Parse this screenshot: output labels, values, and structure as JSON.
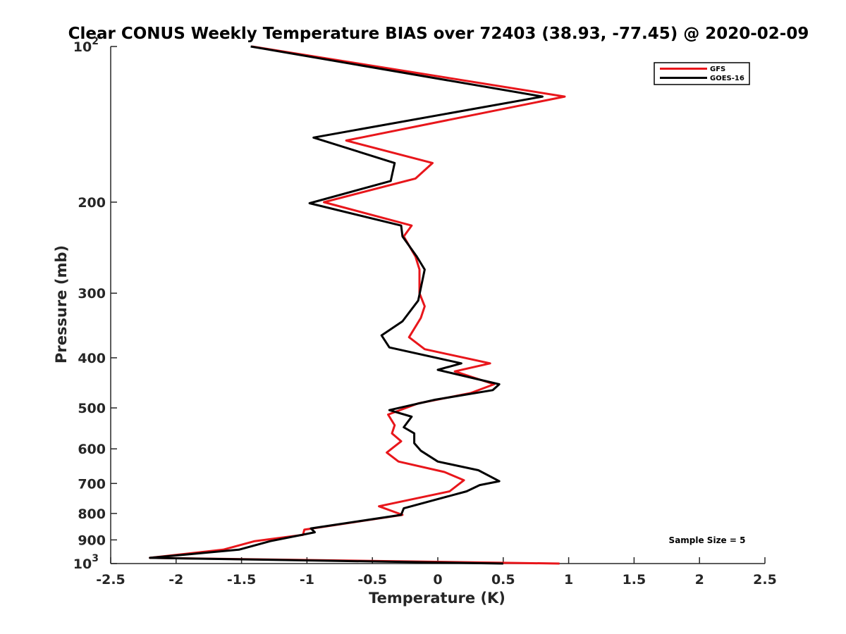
{
  "chart_data": {
    "type": "line",
    "title": "Clear CONUS Weekly Temperature BIAS over 72403 (38.93, -77.45) @ 2020-02-09",
    "xlabel": "Temperature (K)",
    "ylabel": "Pressure (mb)",
    "xlim": [
      -2.5,
      2.5
    ],
    "ylim": [
      100,
      1000
    ],
    "y_scale": "log",
    "y_reversed": true,
    "grid": false,
    "legend_position": "top-right",
    "x_ticks": [
      "-2.5",
      "-2",
      "-1.5",
      "-1",
      "-0.5",
      "0",
      "0.5",
      "1",
      "1.5",
      "2",
      "2.5"
    ],
    "x_tick_values": [
      -2.5,
      -2,
      -1.5,
      -1,
      -0.5,
      0,
      0.5,
      1,
      1.5,
      2,
      2.5
    ],
    "y_ticks": [
      {
        "value": 100,
        "base": "10",
        "exp": "2"
      },
      {
        "value": 200,
        "base": "200",
        "exp": ""
      },
      {
        "value": 300,
        "base": "300",
        "exp": ""
      },
      {
        "value": 400,
        "base": "400",
        "exp": ""
      },
      {
        "value": 500,
        "base": "500",
        "exp": ""
      },
      {
        "value": 600,
        "base": "600",
        "exp": ""
      },
      {
        "value": 700,
        "base": "700",
        "exp": ""
      },
      {
        "value": 800,
        "base": "800",
        "exp": ""
      },
      {
        "value": 900,
        "base": "900",
        "exp": ""
      },
      {
        "value": 1000,
        "base": "10",
        "exp": "3"
      }
    ],
    "series": [
      {
        "name": "GFS",
        "color": "#e8161b",
        "points": [
          [
            -1.42,
            100
          ],
          [
            0.97,
            125
          ],
          [
            -0.7,
            152
          ],
          [
            -0.04,
            168
          ],
          [
            -0.17,
            180
          ],
          [
            -0.87,
            200
          ],
          [
            -0.2,
            222
          ],
          [
            -0.26,
            233
          ],
          [
            -0.17,
            255
          ],
          [
            -0.14,
            270
          ],
          [
            -0.14,
            300
          ],
          [
            -0.1,
            318
          ],
          [
            -0.13,
            335
          ],
          [
            -0.22,
            365
          ],
          [
            -0.1,
            385
          ],
          [
            0.4,
            410
          ],
          [
            0.13,
            425
          ],
          [
            0.43,
            450
          ],
          [
            0.25,
            468
          ],
          [
            -0.15,
            490
          ],
          [
            -0.38,
            515
          ],
          [
            -0.33,
            540
          ],
          [
            -0.35,
            560
          ],
          [
            -0.28,
            580
          ],
          [
            -0.39,
            610
          ],
          [
            -0.3,
            635
          ],
          [
            0.05,
            665
          ],
          [
            0.2,
            690
          ],
          [
            0.09,
            725
          ],
          [
            -0.45,
            775
          ],
          [
            -0.27,
            805
          ],
          [
            -1.02,
            860
          ],
          [
            -1.03,
            880
          ],
          [
            -1.4,
            905
          ],
          [
            -1.64,
            940
          ],
          [
            -2.2,
            975
          ],
          [
            0.93,
            1000
          ]
        ]
      },
      {
        "name": "GOES-16",
        "color": "#000000",
        "points": [
          [
            -1.43,
            100
          ],
          [
            0.8,
            125
          ],
          [
            -0.95,
            150
          ],
          [
            -0.33,
            168
          ],
          [
            -0.36,
            182
          ],
          [
            -0.98,
            201
          ],
          [
            -0.28,
            222
          ],
          [
            -0.27,
            233
          ],
          [
            -0.16,
            255
          ],
          [
            -0.1,
            270
          ],
          [
            -0.15,
            310
          ],
          [
            -0.27,
            340
          ],
          [
            -0.43,
            362
          ],
          [
            -0.37,
            382
          ],
          [
            0.18,
            410
          ],
          [
            0.0,
            422
          ],
          [
            0.47,
            450
          ],
          [
            0.42,
            462
          ],
          [
            -0.02,
            482
          ],
          [
            -0.37,
            505
          ],
          [
            -0.2,
            520
          ],
          [
            -0.26,
            545
          ],
          [
            -0.18,
            560
          ],
          [
            -0.18,
            585
          ],
          [
            -0.13,
            605
          ],
          [
            0.0,
            635
          ],
          [
            0.31,
            660
          ],
          [
            0.47,
            693
          ],
          [
            0.32,
            705
          ],
          [
            0.22,
            725
          ],
          [
            -0.26,
            782
          ],
          [
            -0.28,
            805
          ],
          [
            -0.97,
            855
          ],
          [
            -0.94,
            870
          ],
          [
            -1.28,
            905
          ],
          [
            -1.52,
            940
          ],
          [
            -2.2,
            975
          ],
          [
            0.5,
            1000
          ]
        ]
      }
    ],
    "annotations": [
      "Sample Size = 5"
    ]
  }
}
